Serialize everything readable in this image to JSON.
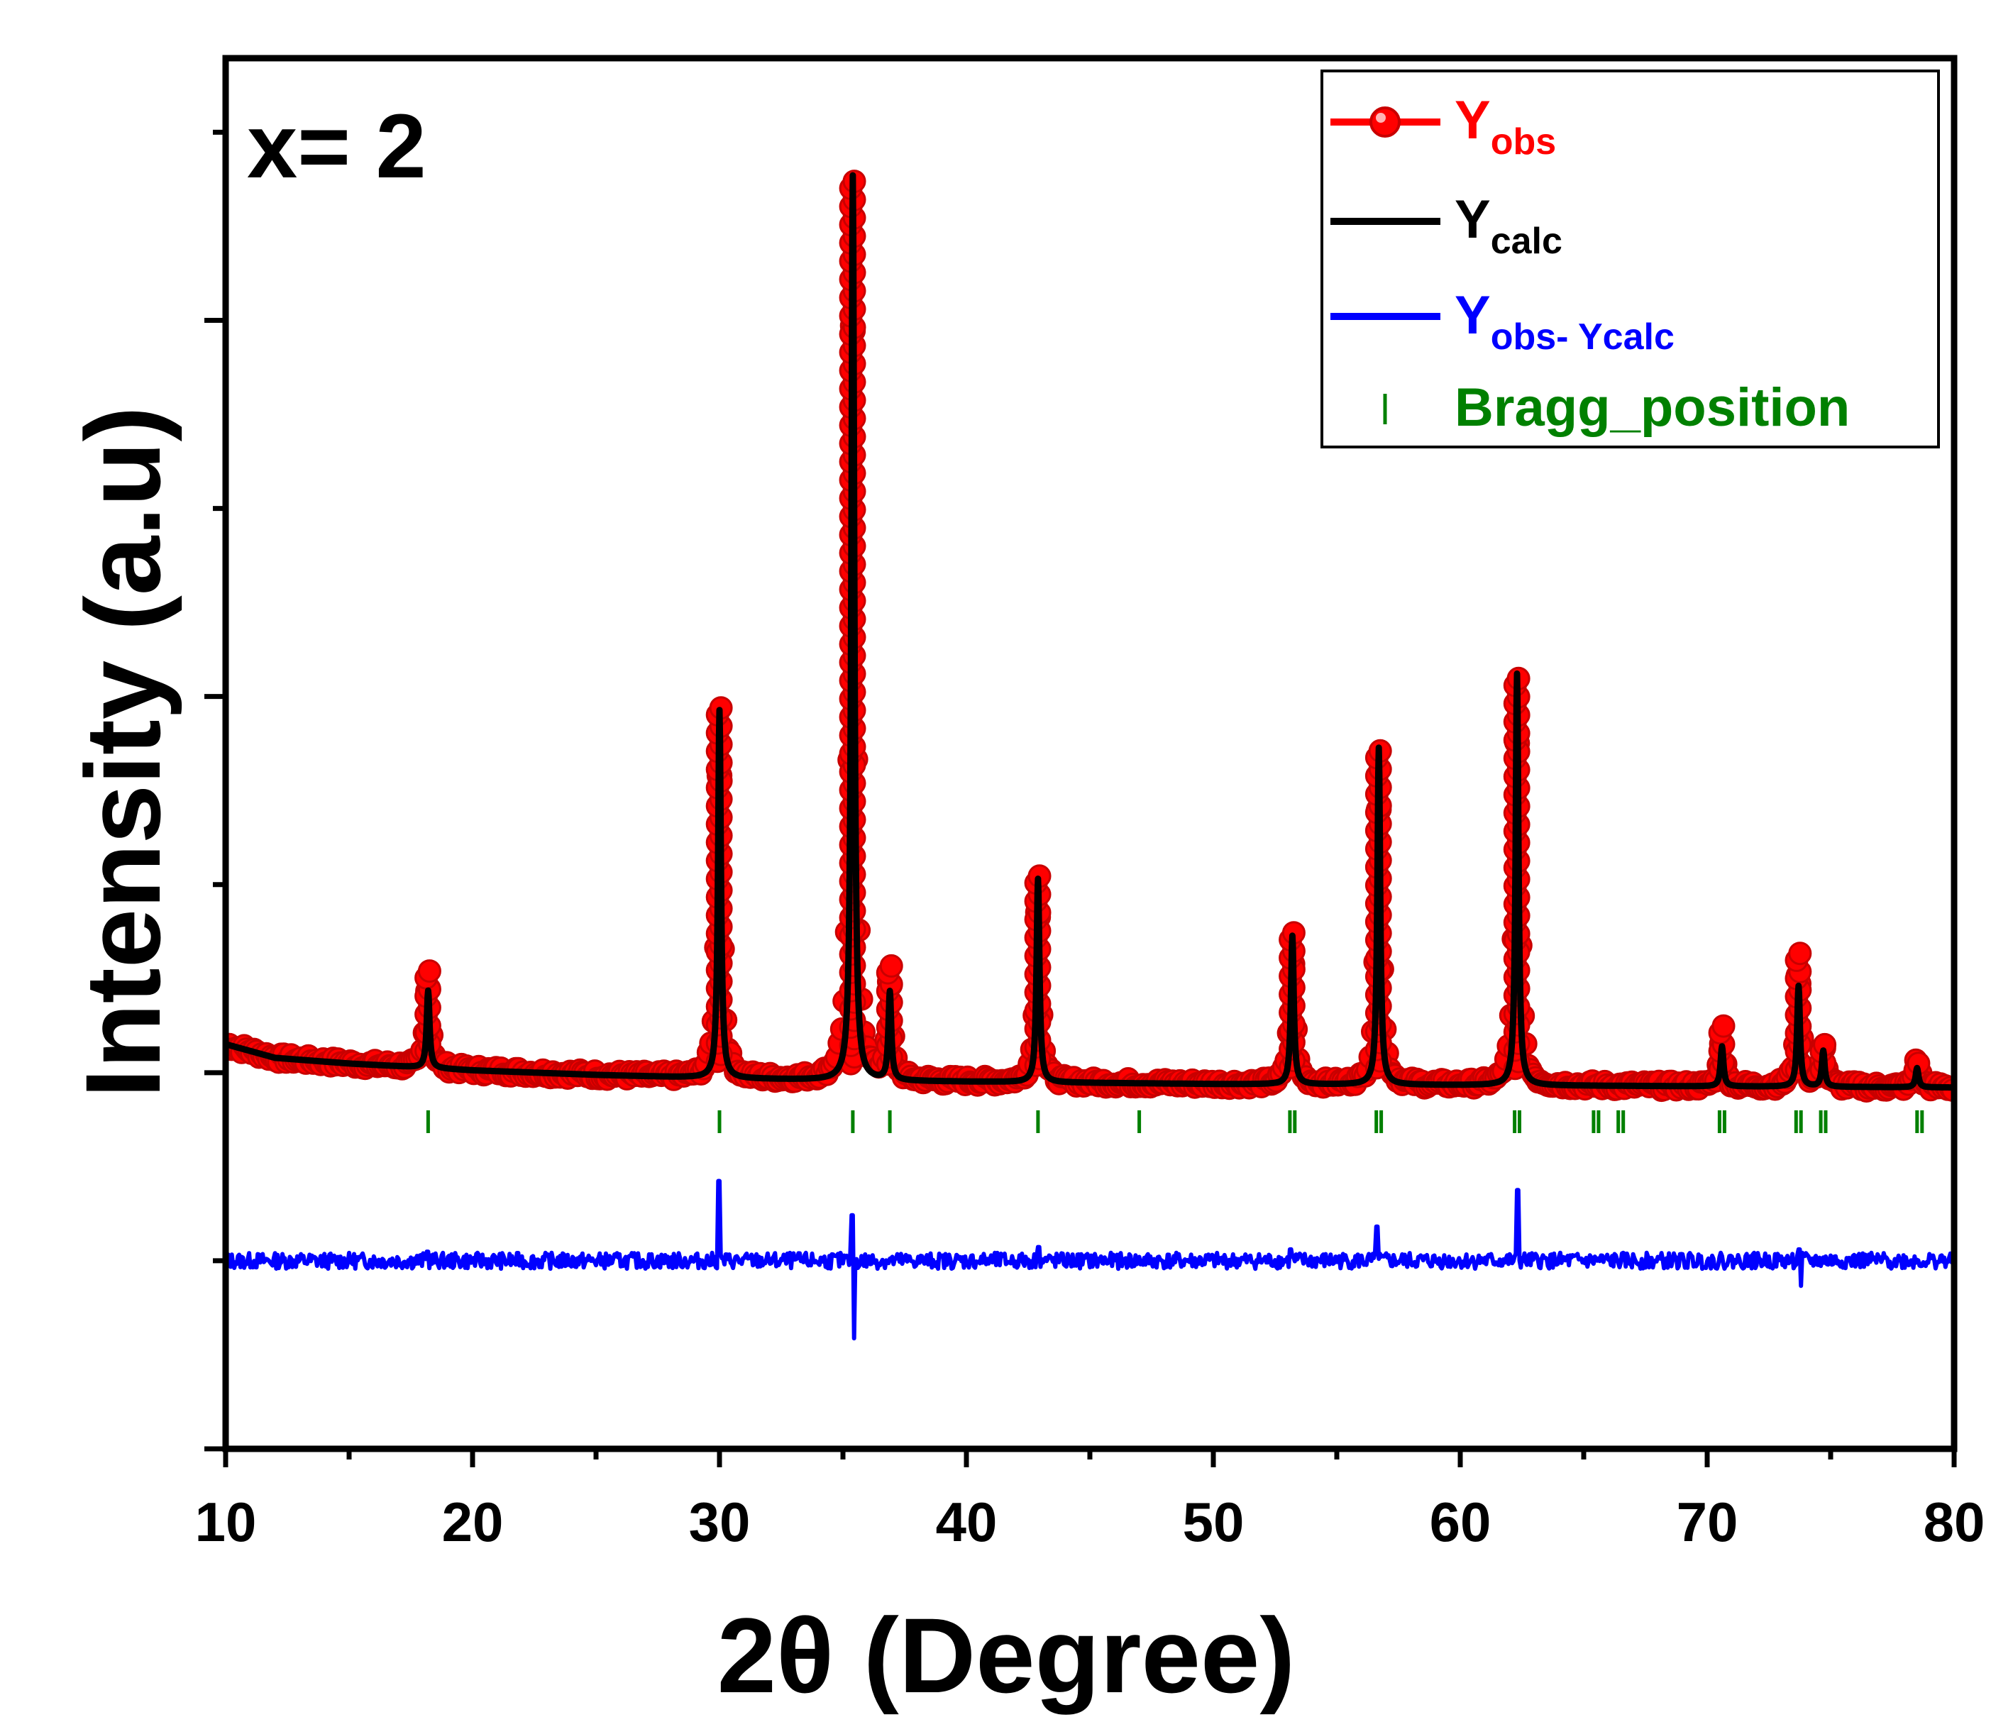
{
  "chart_data": {
    "type": "line",
    "title": "",
    "annotation": "x= 2",
    "xlabel": "2θ (Degree)",
    "ylabel": "Intensity (a.u)",
    "xlim": [
      10,
      80
    ],
    "ylim": [
      -20,
      102
    ],
    "x_major_ticks": [
      10,
      20,
      30,
      40,
      50,
      60,
      70,
      80
    ],
    "x_minor_ticks": [
      15,
      25,
      35,
      45,
      55,
      65,
      75
    ],
    "y_ticks": [
      -20,
      -3.5,
      13,
      29.5,
      46,
      62.5,
      79,
      95.5
    ],
    "tick_labels_y_shown": false,
    "grid": false,
    "legend_position": "top-right",
    "legend": [
      {
        "key": "obs",
        "label": "Y",
        "sub": "obs"
      },
      {
        "key": "calc",
        "label": "Y",
        "sub": "calc"
      },
      {
        "key": "diff",
        "label": "Y",
        "sub": "obs- Ycalc"
      },
      {
        "key": "bragg",
        "label": "Bragg_position",
        "sub": ""
      }
    ],
    "colors": {
      "obs": "#ff0000",
      "calc": "#000000",
      "diff": "#0000ff",
      "bragg": "#008000",
      "axis": "#000000"
    },
    "baseline": {
      "x": [
        10,
        12,
        15,
        20,
        25,
        30,
        35,
        40,
        50,
        60,
        70,
        80
      ],
      "y": [
        15.5,
        14.3,
        13.8,
        13.2,
        12.8,
        12.5,
        12.3,
        12.2,
        12.0,
        11.9,
        11.8,
        11.7
      ]
    },
    "peaks": [
      {
        "pos": 18.2,
        "obs": 22.0,
        "calc": 20.2
      },
      {
        "pos": 30.0,
        "obs": 44.8,
        "calc": 44.8
      },
      {
        "pos": 35.4,
        "obs": 91.7,
        "calc": 91.7
      },
      {
        "pos": 36.9,
        "obs": 21.8,
        "calc": 20.0
      },
      {
        "pos": 42.9,
        "obs": 30.0,
        "calc": 30.0
      },
      {
        "pos": 53.2,
        "obs": 25.0,
        "calc": 25.0
      },
      {
        "pos": 56.7,
        "obs": 41.5,
        "calc": 41.5
      },
      {
        "pos": 62.3,
        "obs": 48.0,
        "calc": 48.0
      },
      {
        "pos": 70.6,
        "obs": 16.6,
        "calc": 15.3
      },
      {
        "pos": 73.7,
        "obs": 23.0,
        "calc": 20.6
      },
      {
        "pos": 74.7,
        "obs": 16.0,
        "calc": 14.9
      },
      {
        "pos": 78.5,
        "obs": 14.5,
        "calc": 13.4
      }
    ],
    "bragg_positions": [
      18.2,
      30.0,
      35.4,
      36.9,
      42.9,
      47.0,
      53.1,
      53.3,
      56.6,
      56.8,
      62.2,
      62.4,
      65.4,
      65.6,
      66.4,
      66.6,
      70.5,
      70.7,
      73.6,
      73.8,
      74.6,
      74.8,
      78.5,
      78.7
    ],
    "bragg_level": 8.7,
    "difference_offset": -3.5,
    "difference_spikes": [
      {
        "pos": 18.2,
        "v": 0.8
      },
      {
        "pos": 30.0,
        "v": 7.0
      },
      {
        "pos": 35.4,
        "v": 4.0,
        "neg": -6.8
      },
      {
        "pos": 42.9,
        "v": 1.2
      },
      {
        "pos": 53.1,
        "v": 1.0
      },
      {
        "pos": 56.6,
        "v": 3.0
      },
      {
        "pos": 62.3,
        "v": 6.2
      },
      {
        "pos": 73.7,
        "v": 1.0,
        "neg": -2.2
      }
    ]
  }
}
